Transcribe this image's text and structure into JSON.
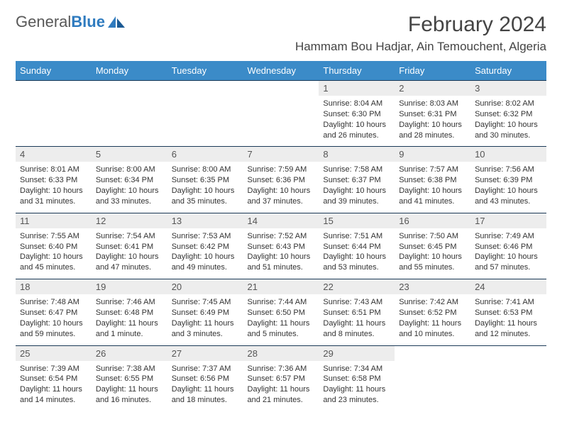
{
  "brand": {
    "word1": "General",
    "word2": "Blue"
  },
  "header": {
    "month": "February 2024",
    "location": "Hammam Bou Hadjar, Ain Temouchent, Algeria"
  },
  "dow": [
    "Sunday",
    "Monday",
    "Tuesday",
    "Wednesday",
    "Thursday",
    "Friday",
    "Saturday"
  ],
  "colors": {
    "header_bg": "#3b8bc8",
    "daynum_bg": "#ededed",
    "cell_border": "#1b3a57",
    "text": "#333333"
  },
  "layout": {
    "leading_blanks": 4,
    "columns": 7
  },
  "days": [
    {
      "n": 1,
      "sunrise": "8:04 AM",
      "sunset": "6:30 PM",
      "daylight": "10 hours and 26 minutes."
    },
    {
      "n": 2,
      "sunrise": "8:03 AM",
      "sunset": "6:31 PM",
      "daylight": "10 hours and 28 minutes."
    },
    {
      "n": 3,
      "sunrise": "8:02 AM",
      "sunset": "6:32 PM",
      "daylight": "10 hours and 30 minutes."
    },
    {
      "n": 4,
      "sunrise": "8:01 AM",
      "sunset": "6:33 PM",
      "daylight": "10 hours and 31 minutes."
    },
    {
      "n": 5,
      "sunrise": "8:00 AM",
      "sunset": "6:34 PM",
      "daylight": "10 hours and 33 minutes."
    },
    {
      "n": 6,
      "sunrise": "8:00 AM",
      "sunset": "6:35 PM",
      "daylight": "10 hours and 35 minutes."
    },
    {
      "n": 7,
      "sunrise": "7:59 AM",
      "sunset": "6:36 PM",
      "daylight": "10 hours and 37 minutes."
    },
    {
      "n": 8,
      "sunrise": "7:58 AM",
      "sunset": "6:37 PM",
      "daylight": "10 hours and 39 minutes."
    },
    {
      "n": 9,
      "sunrise": "7:57 AM",
      "sunset": "6:38 PM",
      "daylight": "10 hours and 41 minutes."
    },
    {
      "n": 10,
      "sunrise": "7:56 AM",
      "sunset": "6:39 PM",
      "daylight": "10 hours and 43 minutes."
    },
    {
      "n": 11,
      "sunrise": "7:55 AM",
      "sunset": "6:40 PM",
      "daylight": "10 hours and 45 minutes."
    },
    {
      "n": 12,
      "sunrise": "7:54 AM",
      "sunset": "6:41 PM",
      "daylight": "10 hours and 47 minutes."
    },
    {
      "n": 13,
      "sunrise": "7:53 AM",
      "sunset": "6:42 PM",
      "daylight": "10 hours and 49 minutes."
    },
    {
      "n": 14,
      "sunrise": "7:52 AM",
      "sunset": "6:43 PM",
      "daylight": "10 hours and 51 minutes."
    },
    {
      "n": 15,
      "sunrise": "7:51 AM",
      "sunset": "6:44 PM",
      "daylight": "10 hours and 53 minutes."
    },
    {
      "n": 16,
      "sunrise": "7:50 AM",
      "sunset": "6:45 PM",
      "daylight": "10 hours and 55 minutes."
    },
    {
      "n": 17,
      "sunrise": "7:49 AM",
      "sunset": "6:46 PM",
      "daylight": "10 hours and 57 minutes."
    },
    {
      "n": 18,
      "sunrise": "7:48 AM",
      "sunset": "6:47 PM",
      "daylight": "10 hours and 59 minutes."
    },
    {
      "n": 19,
      "sunrise": "7:46 AM",
      "sunset": "6:48 PM",
      "daylight": "11 hours and 1 minute."
    },
    {
      "n": 20,
      "sunrise": "7:45 AM",
      "sunset": "6:49 PM",
      "daylight": "11 hours and 3 minutes."
    },
    {
      "n": 21,
      "sunrise": "7:44 AM",
      "sunset": "6:50 PM",
      "daylight": "11 hours and 5 minutes."
    },
    {
      "n": 22,
      "sunrise": "7:43 AM",
      "sunset": "6:51 PM",
      "daylight": "11 hours and 8 minutes."
    },
    {
      "n": 23,
      "sunrise": "7:42 AM",
      "sunset": "6:52 PM",
      "daylight": "11 hours and 10 minutes."
    },
    {
      "n": 24,
      "sunrise": "7:41 AM",
      "sunset": "6:53 PM",
      "daylight": "11 hours and 12 minutes."
    },
    {
      "n": 25,
      "sunrise": "7:39 AM",
      "sunset": "6:54 PM",
      "daylight": "11 hours and 14 minutes."
    },
    {
      "n": 26,
      "sunrise": "7:38 AM",
      "sunset": "6:55 PM",
      "daylight": "11 hours and 16 minutes."
    },
    {
      "n": 27,
      "sunrise": "7:37 AM",
      "sunset": "6:56 PM",
      "daylight": "11 hours and 18 minutes."
    },
    {
      "n": 28,
      "sunrise": "7:36 AM",
      "sunset": "6:57 PM",
      "daylight": "11 hours and 21 minutes."
    },
    {
      "n": 29,
      "sunrise": "7:34 AM",
      "sunset": "6:58 PM",
      "daylight": "11 hours and 23 minutes."
    }
  ],
  "labels": {
    "sunrise": "Sunrise:",
    "sunset": "Sunset:",
    "daylight": "Daylight:"
  }
}
